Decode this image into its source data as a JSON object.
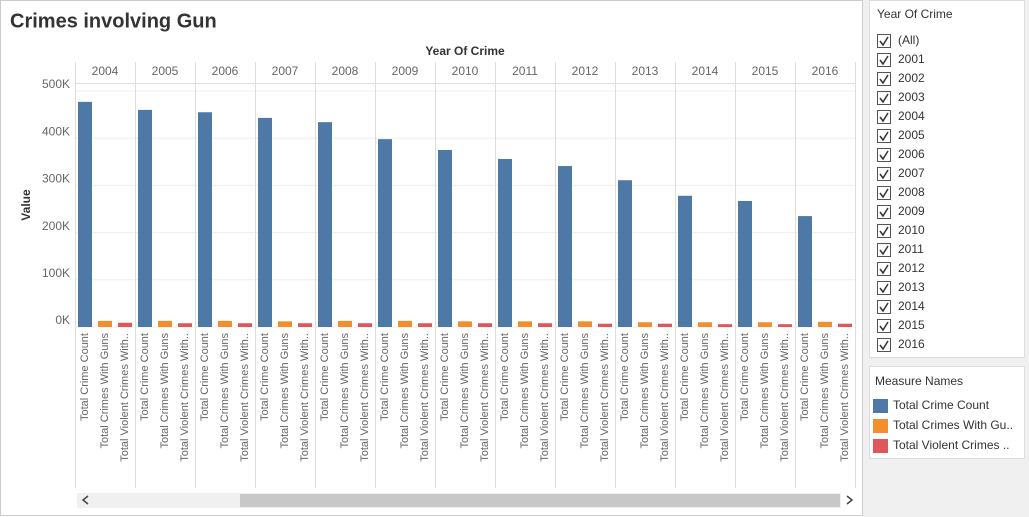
{
  "chart_data": {
    "type": "bar",
    "title": "Crimes involving Gun",
    "x_label": "Year Of Crime",
    "y_label": "Value",
    "categories": [
      "2004",
      "2005",
      "2006",
      "2007",
      "2008",
      "2009",
      "2010",
      "2011",
      "2012",
      "2013",
      "2014",
      "2015",
      "2016"
    ],
    "series": [
      {
        "name": "Total Crime Count",
        "legend_name": "Total Crime Count",
        "color": "#4e79a7",
        "values": [
          477000,
          460000,
          455000,
          443000,
          434000,
          398000,
          375000,
          356000,
          341000,
          311000,
          278000,
          267000,
          235000
        ]
      },
      {
        "name": "Total Crimes With Guns",
        "legend_name": "Total Crimes With Gu..",
        "color": "#f28e2b",
        "values": [
          13000,
          13000,
          13000,
          12000,
          13000,
          13000,
          12000,
          12000,
          12000,
          10000,
          10000,
          10000,
          11000
        ]
      },
      {
        "name": "Total Violent Crimes With..",
        "legend_name": "Total Violent Crimes ..",
        "color": "#e15759",
        "values": [
          9000,
          8000,
          8000,
          8000,
          8000,
          8000,
          8000,
          8000,
          7000,
          7000,
          6000,
          6000,
          7000
        ]
      }
    ],
    "ylim": [
      0,
      500000
    ],
    "yticks": [
      {
        "value": 0,
        "label": "0K"
      },
      {
        "value": 100000,
        "label": "100K"
      },
      {
        "value": 200000,
        "label": "200K"
      },
      {
        "value": 300000,
        "label": "300K"
      },
      {
        "value": 400000,
        "label": "400K"
      },
      {
        "value": 500000,
        "label": "500K"
      }
    ],
    "grid": true,
    "legend_title": "Measure Names"
  },
  "filter": {
    "title": "Year Of Crime",
    "items": [
      "(All)",
      "2001",
      "2002",
      "2003",
      "2004",
      "2005",
      "2006",
      "2007",
      "2008",
      "2009",
      "2010",
      "2011",
      "2012",
      "2013",
      "2014",
      "2015",
      "2016"
    ]
  }
}
